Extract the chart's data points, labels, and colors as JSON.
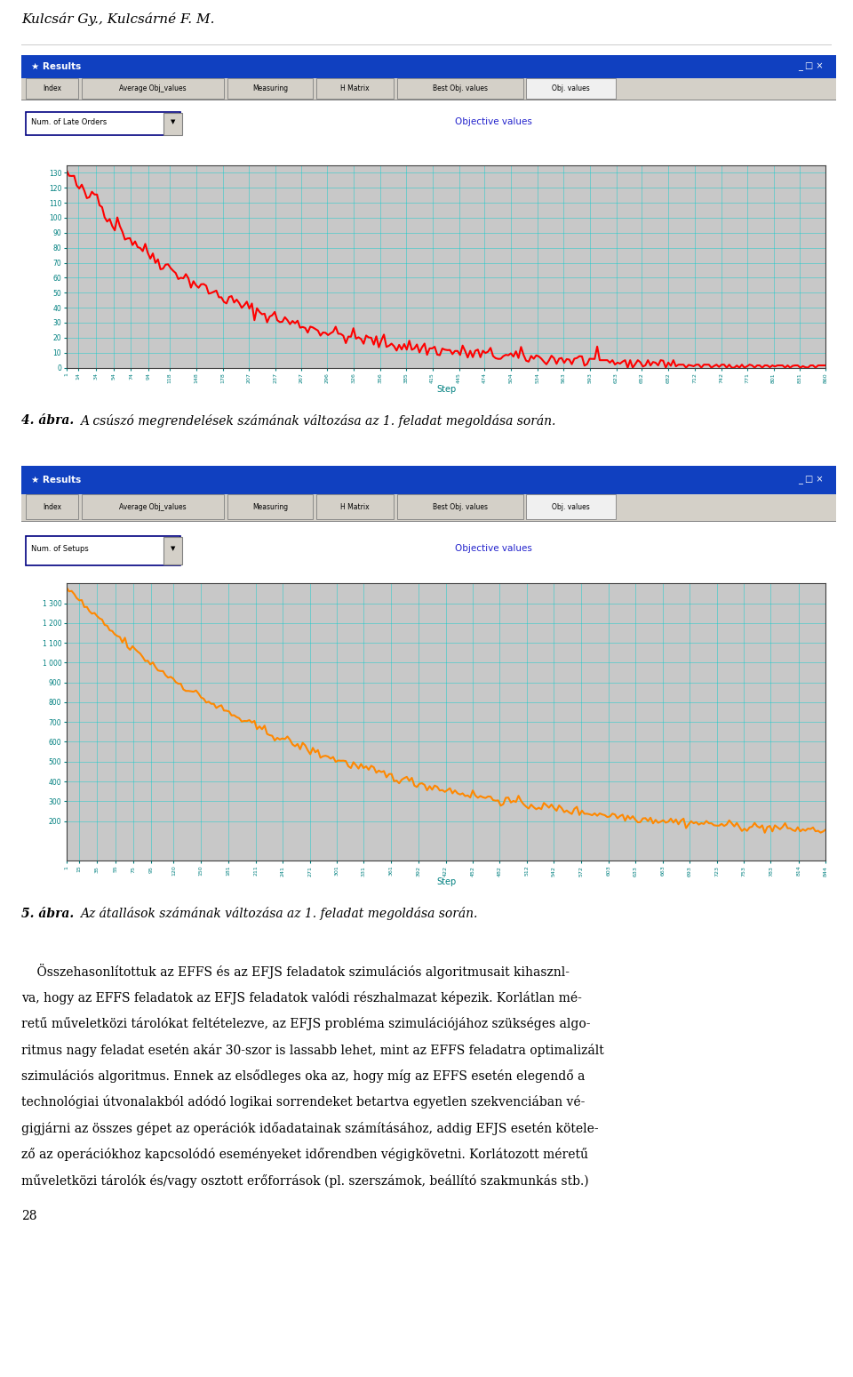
{
  "header_text": "Kulcsár Gy., Kulcsárné F. M.",
  "fig4_caption_bold": "4. ábra.",
  "fig4_caption_italic": " A csúszó megrendelések számának változása az 1. feladat megoldása során.",
  "fig5_caption_bold": "5. ábra.",
  "fig5_caption_italic": " Az átallások számának változása az 1. feladat megoldása során.",
  "page_number": "28",
  "tabs": [
    "Index",
    "Average Obj_values",
    "Measuring",
    "H Matrix",
    "Best Obj. values",
    "Obj. values"
  ],
  "chart1": {
    "title": "Objective values",
    "dropdown_label": "Num. of Late Orders",
    "xlabel": "Step",
    "yticks": [
      0,
      10,
      20,
      30,
      40,
      50,
      60,
      70,
      80,
      90,
      100,
      110,
      120,
      130
    ],
    "xticks": [
      1,
      14,
      34,
      54,
      74,
      94,
      118,
      148,
      178,
      207,
      237,
      267,
      296,
      326,
      356,
      385,
      415,
      445,
      474,
      504,
      534,
      563,
      593,
      623,
      652,
      682,
      712,
      742,
      771,
      801,
      831,
      860
    ],
    "line_color": "#FF0000",
    "ymin": 0,
    "ymax": 135,
    "xmin": 1,
    "xmax": 860
  },
  "chart2": {
    "title": "Objective values",
    "dropdown_label": "Num. of Setups",
    "xlabel": "Step",
    "yticks": [
      200,
      300,
      400,
      500,
      600,
      700,
      800,
      900,
      1000,
      1100,
      1200,
      1300
    ],
    "xticks": [
      1,
      15,
      35,
      55,
      75,
      95,
      120,
      150,
      181,
      211,
      241,
      271,
      301,
      331,
      361,
      392,
      422,
      452,
      482,
      512,
      542,
      572,
      603,
      633,
      663,
      693,
      723,
      753,
      783,
      814,
      844
    ],
    "line_color": "#FF8800",
    "ymin": 0,
    "ymax": 1400,
    "xmin": 1,
    "xmax": 844
  },
  "body_text": [
    "    Összehasonlítottuk az EFFS és az EFJS feladatok szimulációs algoritmusait kihasznl-",
    "va, hogy az EFFS feladatok az EFJS feladatok valódi részhalmazat képezik. Korlátlan mé-",
    "retű műveletközi tárolókat feltételezve, az EFJS probléma szimulációjához szükséges algo-",
    "ritmus nagy feladat esetén akár 30-szor is lassabb lehet, mint az EFFS feladatra optimalizált",
    "szimulációs algoritmus. Ennek az elsődleges oka az, hogy míg az EFFS esetén elegendő a",
    "technológiai útvonalakból adódó logikai sorrendeket betartva egyetlen szekvenciában vé-",
    "gigjárni az összes gépet az operációk időadatainak számításához, addig EFJS esetén kötele-",
    "ző az operációkhoz kapcsolódó eseményeket időrendben végigkövetni. Korlátozott méretű",
    "műveletközi tárolók és/vagy osztott erőforrások (pl. szerszámok, beállító szakmunkás stb.)"
  ],
  "titlebar_color": "#1040C0",
  "window_bg": "#D4D0C8",
  "plot_bg": "#C8C8C8",
  "tab_active_bg": "#E8E8E8",
  "grid_color": "#00CCCC",
  "tick_color": "#008080"
}
